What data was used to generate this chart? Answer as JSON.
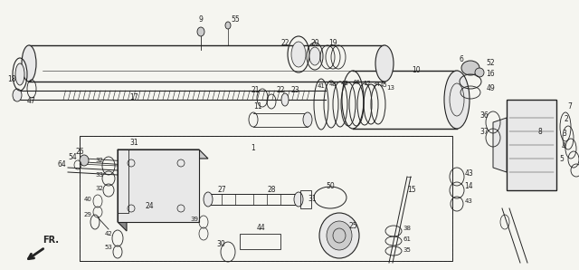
{
  "bg_color": "#f5f5f0",
  "fg_color": "#1a1a1a",
  "fig_width": 6.4,
  "fig_height": 2.98,
  "dpi": 100,
  "line_color": "#222222",
  "gray_fill": "#cccccc",
  "dark_fill": "#888888",
  "light_fill": "#e8e8e8"
}
